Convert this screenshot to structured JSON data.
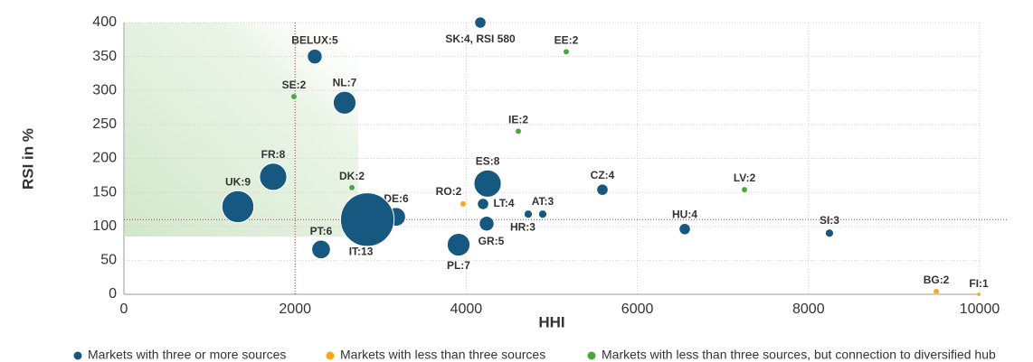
{
  "chart_data": {
    "type": "bubble",
    "x_label": "HHI",
    "y_label": "RSI in %",
    "xlim": [
      0,
      10000
    ],
    "xticks": [
      0,
      2000,
      4000,
      6000,
      8000,
      10000
    ],
    "ylim": [
      0,
      400
    ],
    "yticks": [
      0,
      50,
      100,
      150,
      200,
      250,
      300,
      350,
      400
    ],
    "grid": true,
    "reference_lines": {
      "x": 2000,
      "y": 110
    },
    "legend": "bottom",
    "series": [
      {
        "name": "Markets with three or more sources",
        "color": "#16587f",
        "labels": [
          "SK:4, RSI 580",
          "BELUX:5",
          "NL:7",
          "FR:8",
          "ES:8",
          "CZ:4",
          "UK:9",
          "LT:4",
          "AT:3",
          "HR:3",
          "DE:6",
          "IT:13",
          "GR:5",
          "HU:4",
          "SI:3",
          "PT:6",
          "PL:7"
        ],
        "x": [
          4165,
          2230,
          2579,
          1744,
          4250,
          5592,
          1332,
          4197,
          4894,
          4725,
          3182,
          2844,
          4239,
          6554,
          8245,
          2304,
          3911
        ],
        "values": [
          400,
          350,
          282,
          173,
          163,
          154,
          129,
          133,
          118,
          118,
          114,
          110,
          104,
          96,
          90,
          66,
          73
        ],
        "sizes": [
          4,
          5,
          7,
          8,
          8,
          4,
          9,
          4,
          3,
          3,
          6,
          13,
          5,
          4,
          3,
          6,
          7
        ]
      },
      {
        "name": "Markets with less than three sources",
        "color": "#f5a81c",
        "labels": [
          "RO:2",
          "BG:2",
          "FI:1"
        ],
        "x": [
          3964,
          9493,
          9990
        ],
        "values": [
          133,
          4,
          0
        ],
        "sizes": [
          2,
          2,
          1
        ]
      },
      {
        "name": "Markets with less than three sources, but connection to diversified hub",
        "color": "#4ea442",
        "labels": [
          "SE:2",
          "EE:2",
          "IE:2",
          "DK:2",
          "LV:2"
        ],
        "x": [
          1987,
          5169,
          4609,
          2664,
          7252
        ],
        "values": [
          291,
          357,
          240,
          157,
          154
        ],
        "sizes": [
          2,
          2,
          2,
          2,
          2
        ]
      }
    ]
  }
}
